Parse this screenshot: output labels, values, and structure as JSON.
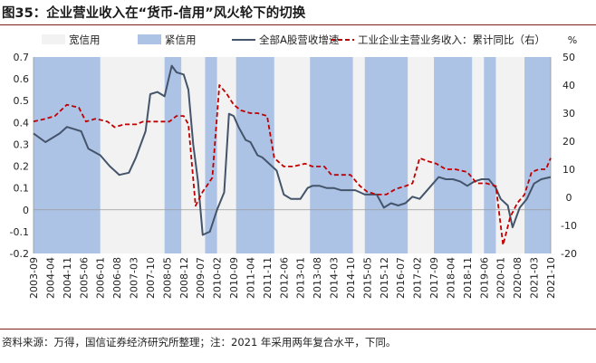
{
  "title": "图35：企业营业收入在“货币-信用”风火轮下的切换",
  "source": "资料来源：万得，国信证券经济研究所整理；注：2021 年采用两年复合水平，下同。",
  "chart_data": {
    "type": "line",
    "left_axis": {
      "min": -0.2,
      "max": 0.7,
      "step": 0.1,
      "ticks": [
        "-0.2",
        "-0.1",
        "0",
        "0.1",
        "0.2",
        "0.3",
        "0.4",
        "0.5",
        "0.6",
        "0.7"
      ]
    },
    "right_axis": {
      "min": -20,
      "max": 50,
      "step": 10,
      "unit": "%",
      "ticks": [
        "-20",
        "-10",
        "0",
        "10",
        "20",
        "30",
        "40",
        "50"
      ]
    },
    "x_labels": [
      "2003-09",
      "2004-04",
      "2004-11",
      "2005-06",
      "2006-01",
      "2006-08",
      "2007-03",
      "2007-10",
      "2008-05",
      "2008-12",
      "2009-07",
      "2010-02",
      "2010-09",
      "2011-04",
      "2011-11",
      "2012-06",
      "2013-01",
      "2013-08",
      "2014-03",
      "2014-10",
      "2015-05",
      "2015-12",
      "2016-07",
      "2017-02",
      "2017-09",
      "2018-04",
      "2018-11",
      "2019-06",
      "2020-01",
      "2020-08",
      "2021-03",
      "2021-10"
    ],
    "legend": [
      {
        "label": "宽信用",
        "kind": "area",
        "color": "#f2f2f2"
      },
      {
        "label": "紧信用",
        "kind": "area",
        "color": "#adc3e6"
      },
      {
        "label": "全部A股营收增速",
        "kind": "line",
        "color": "#44546a",
        "axis": "left"
      },
      {
        "label": "工业企业主营业务收入：累计同比（右）",
        "kind": "dashed",
        "color": "#c00000",
        "axis": "right"
      }
    ],
    "tight_credit_periods": [
      [
        "2003-09",
        "2006-01"
      ],
      [
        "2008-04",
        "2008-11"
      ],
      [
        "2009-09",
        "2010-02"
      ],
      [
        "2010-10",
        "2012-02"
      ],
      [
        "2013-05",
        "2014-11"
      ],
      [
        "2015-04",
        "2016-10"
      ],
      [
        "2017-09",
        "2019-01"
      ],
      [
        "2019-06",
        "2019-11"
      ],
      [
        "2020-11",
        "2021-10"
      ]
    ],
    "series": [
      {
        "name": "全部A股营收增速",
        "axis": "left",
        "points": [
          [
            "2003-09",
            0.35
          ],
          [
            "2004-02",
            0.31
          ],
          [
            "2004-08",
            0.35
          ],
          [
            "2004-11",
            0.38
          ],
          [
            "2005-02",
            0.37
          ],
          [
            "2005-05",
            0.36
          ],
          [
            "2005-08",
            0.28
          ],
          [
            "2006-01",
            0.25
          ],
          [
            "2006-05",
            0.2
          ],
          [
            "2006-09",
            0.16
          ],
          [
            "2007-01",
            0.17
          ],
          [
            "2007-04",
            0.24
          ],
          [
            "2007-08",
            0.36
          ],
          [
            "2007-10",
            0.53
          ],
          [
            "2008-01",
            0.54
          ],
          [
            "2008-04",
            0.52
          ],
          [
            "2008-07",
            0.66
          ],
          [
            "2008-09",
            0.63
          ],
          [
            "2008-12",
            0.62
          ],
          [
            "2009-02",
            0.55
          ],
          [
            "2009-04",
            0.3
          ],
          [
            "2009-06",
            0.13
          ],
          [
            "2009-08",
            -0.115
          ],
          [
            "2009-11",
            -0.1
          ],
          [
            "2010-02",
            0.0
          ],
          [
            "2010-05",
            0.08
          ],
          [
            "2010-07",
            0.44
          ],
          [
            "2010-09",
            0.43
          ],
          [
            "2010-11",
            0.38
          ],
          [
            "2011-02",
            0.32
          ],
          [
            "2011-04",
            0.31
          ],
          [
            "2011-07",
            0.25
          ],
          [
            "2011-09",
            0.24
          ],
          [
            "2011-11",
            0.22
          ],
          [
            "2012-03",
            0.18
          ],
          [
            "2012-06",
            0.07
          ],
          [
            "2012-09",
            0.05
          ],
          [
            "2013-01",
            0.05
          ],
          [
            "2013-04",
            0.1
          ],
          [
            "2013-06",
            0.11
          ],
          [
            "2013-09",
            0.11
          ],
          [
            "2013-12",
            0.1
          ],
          [
            "2014-03",
            0.1
          ],
          [
            "2014-06",
            0.09
          ],
          [
            "2014-09",
            0.09
          ],
          [
            "2014-12",
            0.09
          ],
          [
            "2015-04",
            0.07
          ],
          [
            "2015-06",
            0.07
          ],
          [
            "2015-09",
            0.07
          ],
          [
            "2015-12",
            0.01
          ],
          [
            "2016-03",
            0.03
          ],
          [
            "2016-06",
            0.02
          ],
          [
            "2016-09",
            0.03
          ],
          [
            "2016-12",
            0.06
          ],
          [
            "2017-03",
            0.05
          ],
          [
            "2017-07",
            0.1
          ],
          [
            "2017-11",
            0.15
          ],
          [
            "2018-02",
            0.14
          ],
          [
            "2018-05",
            0.14
          ],
          [
            "2018-08",
            0.13
          ],
          [
            "2018-11",
            0.11
          ],
          [
            "2019-02",
            0.13
          ],
          [
            "2019-05",
            0.14
          ],
          [
            "2019-08",
            0.14
          ],
          [
            "2019-11",
            0.1
          ],
          [
            "2020-01",
            0.05
          ],
          [
            "2020-04",
            0.02
          ],
          [
            "2020-06",
            -0.08
          ],
          [
            "2020-09",
            0.01
          ],
          [
            "2020-12",
            0.05
          ],
          [
            "2021-03",
            0.12
          ],
          [
            "2021-06",
            0.14
          ],
          [
            "2021-10",
            0.15
          ]
        ]
      },
      {
        "name": "工业企业主营业务收入：累计同比（右）",
        "axis": "right",
        "points": [
          [
            "2003-09",
            27
          ],
          [
            "2004-02",
            28
          ],
          [
            "2004-06",
            29
          ],
          [
            "2004-11",
            33
          ],
          [
            "2005-04",
            32
          ],
          [
            "2005-07",
            27
          ],
          [
            "2005-11",
            28
          ],
          [
            "2006-04",
            27
          ],
          [
            "2006-07",
            25
          ],
          [
            "2006-11",
            26
          ],
          [
            "2007-04",
            26
          ],
          [
            "2007-07",
            27
          ],
          [
            "2007-11",
            27
          ],
          [
            "2008-02",
            27
          ],
          [
            "2008-06",
            27
          ],
          [
            "2008-09",
            29
          ],
          [
            "2008-12",
            29
          ],
          [
            "2009-02",
            26
          ],
          [
            "2009-05",
            -3
          ],
          [
            "2009-08",
            2
          ],
          [
            "2009-12",
            7
          ],
          [
            "2010-03",
            40
          ],
          [
            "2010-06",
            37
          ],
          [
            "2010-09",
            33
          ],
          [
            "2010-12",
            31
          ],
          [
            "2011-04",
            30
          ],
          [
            "2011-07",
            30
          ],
          [
            "2011-11",
            29
          ],
          [
            "2012-02",
            14
          ],
          [
            "2012-06",
            11
          ],
          [
            "2012-10",
            11
          ],
          [
            "2013-03",
            12
          ],
          [
            "2013-06",
            11
          ],
          [
            "2013-11",
            11
          ],
          [
            "2014-02",
            8
          ],
          [
            "2014-06",
            8
          ],
          [
            "2014-10",
            8
          ],
          [
            "2015-02",
            4
          ],
          [
            "2015-05",
            2
          ],
          [
            "2015-09",
            1
          ],
          [
            "2016-01",
            1
          ],
          [
            "2016-05",
            3
          ],
          [
            "2016-09",
            4
          ],
          [
            "2016-12",
            5
          ],
          [
            "2017-03",
            14
          ],
          [
            "2017-06",
            13
          ],
          [
            "2017-10",
            12
          ],
          [
            "2018-02",
            10
          ],
          [
            "2018-06",
            10
          ],
          [
            "2018-11",
            9
          ],
          [
            "2019-03",
            5
          ],
          [
            "2019-07",
            5
          ],
          [
            "2019-11",
            4
          ],
          [
            "2020-02",
            -17
          ],
          [
            "2020-05",
            -7
          ],
          [
            "2020-08",
            -2
          ],
          [
            "2020-11",
            1
          ],
          [
            "2021-02",
            9
          ],
          [
            "2021-05",
            10
          ],
          [
            "2021-08",
            10
          ],
          [
            "2021-10",
            14
          ]
        ]
      }
    ]
  }
}
